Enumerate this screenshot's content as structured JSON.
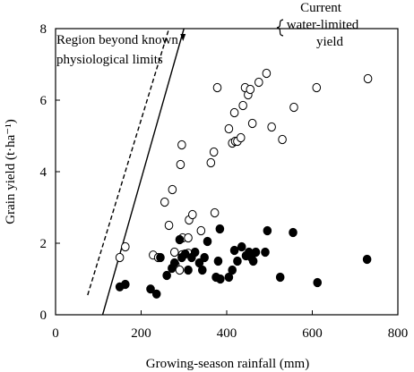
{
  "chart_data": {
    "type": "scatter",
    "title": "",
    "xlabel": "Growing-season rainfall (mm)",
    "ylabel": "Grain yield (t·ha⁻¹)",
    "xlim": [
      0,
      800
    ],
    "ylim": [
      0,
      8
    ],
    "x_ticks": [
      0,
      200,
      400,
      600,
      800
    ],
    "y_ticks": [
      0,
      2,
      4,
      6,
      8
    ],
    "x_tick_labels": [
      "0",
      "200",
      "400",
      "600",
      "800"
    ],
    "y_tick_labels": [
      "0",
      "2",
      "4",
      "6",
      "8"
    ],
    "grid": false,
    "annotations": {
      "region": [
        "Region beyond known",
        "physiological limits"
      ],
      "current": [
        "Current",
        "water-limited",
        "yield"
      ]
    },
    "lines": [
      {
        "style": "dashed",
        "points": [
          [
            75,
            0.55
          ],
          [
            265,
            8
          ]
        ]
      },
      {
        "style": "solid",
        "points": [
          [
            110,
            0
          ],
          [
            300,
            8
          ]
        ]
      }
    ],
    "series": [
      {
        "marker": "open",
        "points": [
          [
            150,
            1.6
          ],
          [
            163,
            1.9
          ],
          [
            228,
            1.67
          ],
          [
            240,
            1.6
          ],
          [
            255,
            3.15
          ],
          [
            273,
            3.5
          ],
          [
            265,
            2.5
          ],
          [
            278,
            1.75
          ],
          [
            296,
            1.68
          ],
          [
            310,
            1.72
          ],
          [
            297,
            2.15
          ],
          [
            310,
            2.15
          ],
          [
            312,
            2.65
          ],
          [
            320,
            2.8
          ],
          [
            280,
            1.4
          ],
          [
            290,
            1.25
          ],
          [
            292,
            4.2
          ],
          [
            295,
            4.75
          ],
          [
            340,
            2.35
          ],
          [
            372,
            2.85
          ],
          [
            363,
            4.25
          ],
          [
            370,
            4.55
          ],
          [
            378,
            6.35
          ],
          [
            405,
            5.2
          ],
          [
            413,
            4.8
          ],
          [
            418,
            5.65
          ],
          [
            420,
            4.85
          ],
          [
            425,
            4.85
          ],
          [
            433,
            4.95
          ],
          [
            438,
            5.85
          ],
          [
            443,
            6.35
          ],
          [
            450,
            6.15
          ],
          [
            455,
            6.3
          ],
          [
            460,
            5.35
          ],
          [
            475,
            6.5
          ],
          [
            493,
            6.75
          ],
          [
            505,
            5.25
          ],
          [
            530,
            4.9
          ],
          [
            557,
            5.8
          ],
          [
            610,
            6.35
          ],
          [
            730,
            6.6
          ]
        ]
      },
      {
        "marker": "filled",
        "points": [
          [
            150,
            0.78
          ],
          [
            163,
            0.85
          ],
          [
            222,
            0.72
          ],
          [
            236,
            0.58
          ],
          [
            245,
            1.6
          ],
          [
            260,
            1.1
          ],
          [
            272,
            1.3
          ],
          [
            278,
            1.45
          ],
          [
            290,
            2.1
          ],
          [
            295,
            1.6
          ],
          [
            303,
            1.7
          ],
          [
            310,
            1.25
          ],
          [
            318,
            1.6
          ],
          [
            326,
            1.75
          ],
          [
            336,
            1.45
          ],
          [
            343,
            1.25
          ],
          [
            348,
            1.6
          ],
          [
            355,
            2.05
          ],
          [
            375,
            1.05
          ],
          [
            380,
            1.5
          ],
          [
            384,
            2.4
          ],
          [
            385,
            1.0
          ],
          [
            405,
            1.05
          ],
          [
            413,
            1.25
          ],
          [
            418,
            1.8
          ],
          [
            425,
            1.5
          ],
          [
            435,
            1.9
          ],
          [
            445,
            1.65
          ],
          [
            452,
            1.75
          ],
          [
            458,
            1.6
          ],
          [
            462,
            1.5
          ],
          [
            468,
            1.75
          ],
          [
            490,
            1.75
          ],
          [
            495,
            2.35
          ],
          [
            525,
            1.05
          ],
          [
            555,
            2.3
          ],
          [
            612,
            0.9
          ],
          [
            728,
            1.55
          ]
        ]
      }
    ]
  }
}
